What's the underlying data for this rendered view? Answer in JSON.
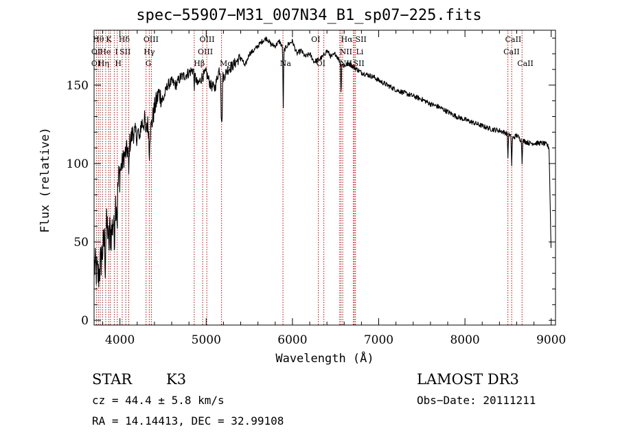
{
  "chart_data": {
    "type": "line",
    "title": "spec−55907−M31_007N34_B1_sp07−225.fits",
    "xlabel": "Wavelength (Å)",
    "ylabel": "Flux (relative)",
    "xlim": [
      3700,
      9050
    ],
    "ylim": [
      -3,
      185
    ],
    "xticks": [
      4000,
      5000,
      6000,
      7000,
      8000,
      9000
    ],
    "yticks": [
      0,
      50,
      100,
      150
    ],
    "x_minor_step": 200,
    "y_minor_step": 10,
    "spectrum": {
      "x": [
        3700,
        3750,
        3800,
        3850,
        3900,
        3950,
        4000,
        4050,
        4100,
        4150,
        4200,
        4250,
        4300,
        4350,
        4400,
        4450,
        4500,
        4550,
        4600,
        4650,
        4700,
        4750,
        4800,
        4850,
        4900,
        4950,
        5000,
        5050,
        5100,
        5150,
        5200,
        5250,
        5300,
        5350,
        5400,
        5450,
        5500,
        5550,
        5600,
        5650,
        5700,
        5750,
        5800,
        5850,
        5900,
        5950,
        6000,
        6050,
        6100,
        6150,
        6200,
        6250,
        6300,
        6350,
        6400,
        6450,
        6500,
        6550,
        6600,
        6650,
        6700,
        6750,
        6800,
        6850,
        6900,
        6950,
        7000,
        7100,
        7200,
        7300,
        7400,
        7500,
        7600,
        7700,
        7800,
        7900,
        8000,
        8100,
        8200,
        8300,
        8400,
        8500,
        8550,
        8600,
        8650,
        8700,
        8750,
        8800,
        8850,
        8900,
        8950,
        8975,
        9000
      ],
      "y": [
        35,
        28,
        45,
        60,
        55,
        75,
        95,
        105,
        110,
        120,
        118,
        125,
        128,
        120,
        135,
        145,
        140,
        150,
        152,
        150,
        155,
        156,
        158,
        160,
        150,
        155,
        158,
        150,
        148,
        160,
        155,
        160,
        162,
        165,
        168,
        162,
        170,
        172,
        175,
        178,
        180,
        176,
        175,
        178,
        172,
        176,
        178,
        170,
        172,
        168,
        170,
        165,
        166,
        168,
        172,
        168,
        170,
        165,
        162,
        164,
        162,
        160,
        158,
        157,
        156,
        155,
        153,
        150,
        147,
        145,
        143,
        141,
        138,
        136,
        133,
        130,
        128,
        126,
        124,
        122,
        121,
        119,
        116,
        118,
        115,
        114,
        113,
        113,
        113,
        113,
        112,
        110,
        40
      ]
    },
    "absorption_dips": {
      "x": [
        3830,
        3870,
        3934,
        3968,
        4102,
        4226,
        4300,
        4340,
        4861,
        5175,
        5183,
        5893,
        6563,
        8498,
        8542,
        8662
      ],
      "depth": [
        18,
        15,
        22,
        20,
        18,
        12,
        14,
        16,
        8,
        25,
        30,
        38,
        20,
        15,
        18,
        14
      ]
    },
    "lines": {
      "x": [
        3727,
        3750,
        3771,
        3798,
        3835,
        3869,
        3889,
        3934,
        3969,
        4026,
        4068,
        4102,
        4303,
        4340,
        4364,
        4861,
        4959,
        5007,
        5178,
        5890,
        6300,
        6364,
        6548,
        6563,
        6583,
        6707,
        6717,
        6731,
        8498,
        8542,
        8662
      ],
      "labels": [
        {
          "x": 3750,
          "row": 0,
          "text": "Hθ"
        },
        {
          "x": 3870,
          "row": 0,
          "text": "K"
        },
        {
          "x": 4050,
          "row": 0,
          "text": "Hδ"
        },
        {
          "x": 4360,
          "row": 0,
          "text": "OIII"
        },
        {
          "x": 5010,
          "row": 0,
          "text": "OIII"
        },
        {
          "x": 6270,
          "row": 0,
          "text": "OI"
        },
        {
          "x": 6630,
          "row": 0,
          "text": "Hα"
        },
        {
          "x": 6795,
          "row": 0,
          "text": "SII"
        },
        {
          "x": 8560,
          "row": 0,
          "text": "CaII"
        },
        {
          "x": 3720,
          "row": 1,
          "text": "OI"
        },
        {
          "x": 3830,
          "row": 1,
          "text": "He"
        },
        {
          "x": 3960,
          "row": 1,
          "text": "I"
        },
        {
          "x": 4060,
          "row": 1,
          "text": "SII"
        },
        {
          "x": 4340,
          "row": 1,
          "text": "Hγ"
        },
        {
          "x": 4990,
          "row": 1,
          "text": "OIII"
        },
        {
          "x": 6620,
          "row": 1,
          "text": "NII"
        },
        {
          "x": 6780,
          "row": 1,
          "text": "Li"
        },
        {
          "x": 8540,
          "row": 1,
          "text": "CaII"
        },
        {
          "x": 3720,
          "row": 2,
          "text": "OI"
        },
        {
          "x": 3810,
          "row": 2,
          "text": "Hη"
        },
        {
          "x": 3980,
          "row": 2,
          "text": "H"
        },
        {
          "x": 4330,
          "row": 2,
          "text": "G"
        },
        {
          "x": 4920,
          "row": 2,
          "text": "Hβ"
        },
        {
          "x": 5230,
          "row": 2,
          "text": "Mg"
        },
        {
          "x": 5920,
          "row": 2,
          "text": "Na"
        },
        {
          "x": 6330,
          "row": 2,
          "text": "OI"
        },
        {
          "x": 6620,
          "row": 2,
          "text": "NII"
        },
        {
          "x": 6770,
          "row": 2,
          "text": "SII"
        },
        {
          "x": 8700,
          "row": 2,
          "text": "CaII"
        }
      ]
    }
  },
  "info": {
    "class": "STAR",
    "subclass": "K3",
    "survey": "LAMOST DR3",
    "cz": "cz = 44.4 ± 5.8 km/s",
    "obs_date": "Obs−Date: 20111211",
    "radec": "RA =  14.14413, DEC =  32.99108"
  }
}
